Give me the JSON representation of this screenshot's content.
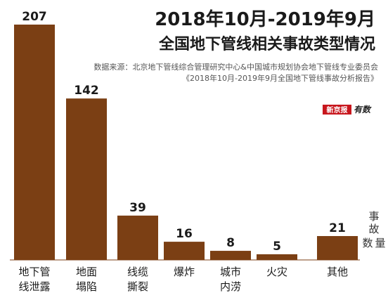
{
  "title_line1": "2018年10月-2019年9月",
  "title_line2": "全国地下管线相关事故类型情况",
  "source_line1": "数据来源：北京地下管线综合管理研究中心&中国城市规划协会地下管线专业委员会",
  "source_line2": "《2018年10月-2019年9月全国地下管线事故分析报告》",
  "brand": {
    "name": "新京报",
    "suffix": "有数"
  },
  "unit_label": "事故数量",
  "colors": {
    "bar": "#7b3f14",
    "text": "#1a1a1a",
    "brand": "#c8161d"
  },
  "chart_data": {
    "type": "bar",
    "title": "2018年10月-2019年9月 全国地下管线相关事故类型情况",
    "ylabel": "事故数量",
    "xlabel": "",
    "grid": false,
    "ylim": [
      0,
      207
    ],
    "categories": [
      [
        "地下管",
        "线泄露"
      ],
      [
        "地面",
        "塌陷"
      ],
      [
        "线缆",
        "撕裂"
      ],
      [
        "爆炸"
      ],
      [
        "城市",
        "内涝"
      ],
      [
        "火灾"
      ],
      [
        "其他"
      ]
    ],
    "values": [
      207,
      142,
      39,
      16,
      8,
      5,
      21
    ]
  }
}
